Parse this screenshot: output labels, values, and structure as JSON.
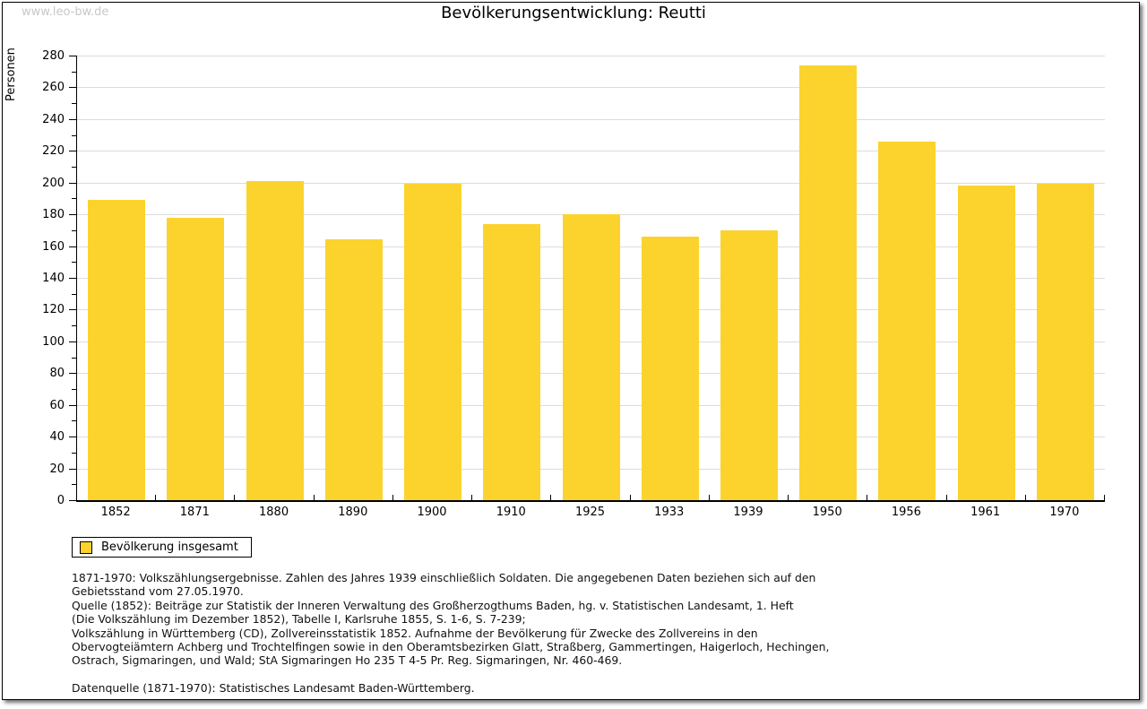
{
  "page": {
    "watermark": "www.leo-bw.de",
    "title": "Bevölkerungsentwicklung: Reutti"
  },
  "chart_data": {
    "type": "bar",
    "title": "Bevölkerungsentwicklung: Reutti",
    "xlabel": "",
    "ylabel": "Personen",
    "categories": [
      "1852",
      "1871",
      "1880",
      "1890",
      "1900",
      "1910",
      "1925",
      "1933",
      "1939",
      "1950",
      "1956",
      "1961",
      "1970"
    ],
    "values": [
      189,
      178,
      201,
      164,
      199,
      174,
      180,
      166,
      170,
      274,
      226,
      198,
      199
    ],
    "series_name": "Bevölkerung insgesamt",
    "ylim": [
      0,
      280
    ],
    "ytick_major_step": 20,
    "ytick_minor_step": 10,
    "grid": "horizontal-major",
    "bar_color": "#fcd32d",
    "legend_position": "below-chart-left"
  },
  "legend": {
    "label": "Bevölkerung insgesamt"
  },
  "footnotes": {
    "lines": [
      "1871-1970: Volkszählungsergebnisse. Zahlen des Jahres 1939 einschließlich Soldaten. Die angegebenen Daten beziehen sich auf den",
      "Gebietsstand vom 27.05.1970.",
      "Quelle (1852): Beiträge zur Statistik der Inneren Verwaltung des Großherzogthums Baden, hg. v. Statistischen Landesamt, 1. Heft",
      "(Die Volkszählung im Dezember 1852), Tabelle I, Karlsruhe 1855, S. 1-6, S. 7-239;",
      "Volkszählung in Württemberg (CD), Zollvereinsstatistik 1852. Aufnahme der Bevölkerung für Zwecke des Zollvereins in den",
      "Obervogteiämtern Achberg und Trochtelfingen sowie in den Oberamtsbezirken Glatt, Straßberg, Gammertingen, Haigerloch, Hechingen,",
      "Ostrach, Sigmaringen, und Wald; StA Sigmaringen Ho 235 T 4-5 Pr. Reg. Sigmaringen, Nr. 460-469."
    ],
    "datasource": "Datenquelle (1871-1970): Statistisches Landesamt Baden-Württemberg."
  },
  "colors": {
    "bar": "#fcd32d",
    "grid": "#dcdcdc",
    "axis": "#000000",
    "watermark": "#c8c8c8",
    "background": "#ffffff"
  }
}
